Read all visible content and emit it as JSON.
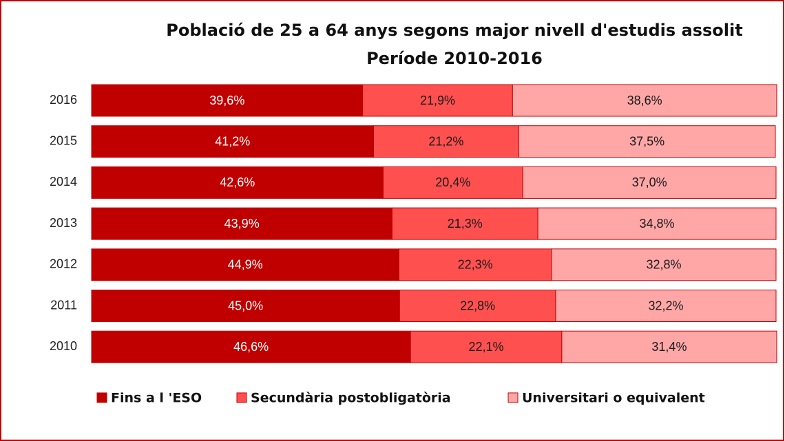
{
  "chart_data": {
    "type": "stacked_bar_horizontal",
    "title": "Població de 25 a 64 anys segons major nivell d'estudis assolit",
    "subtitle": "Període 2010-2016",
    "categories": [
      "2016",
      "2015",
      "2014",
      "2013",
      "2012",
      "2011",
      "2010"
    ],
    "xlim": [
      0,
      100
    ],
    "series": [
      {
        "name": "Fins a l 'ESO",
        "color": "#c00000",
        "label_color": "#ffffff",
        "values": [
          39.6,
          41.2,
          42.6,
          43.9,
          44.9,
          45.0,
          46.6
        ],
        "value_labels": [
          "39,6%",
          "41,2%",
          "42,6%",
          "43,9%",
          "44,9%",
          "45,0%",
          "46,6%"
        ]
      },
      {
        "name": "Secundària postobligatòria",
        "color": "#ff5050",
        "label_color": "#1a1a1a",
        "values": [
          21.9,
          21.2,
          20.4,
          21.3,
          22.3,
          22.8,
          22.1
        ],
        "value_labels": [
          "21,9%",
          "21,2%",
          "20,4%",
          "21,3%",
          "22,3%",
          "22,8%",
          "22,1%"
        ]
      },
      {
        "name": "Universitari o equivalent",
        "color": "#ffa7a7",
        "label_color": "#1a1a1a",
        "values": [
          38.6,
          37.5,
          37.0,
          34.8,
          32.8,
          32.2,
          31.4
        ],
        "value_labels": [
          "38,6%",
          "37,5%",
          "37,0%",
          "34,8%",
          "32,8%",
          "32,2%",
          "31,4%"
        ]
      }
    ],
    "legend": "bottom"
  }
}
